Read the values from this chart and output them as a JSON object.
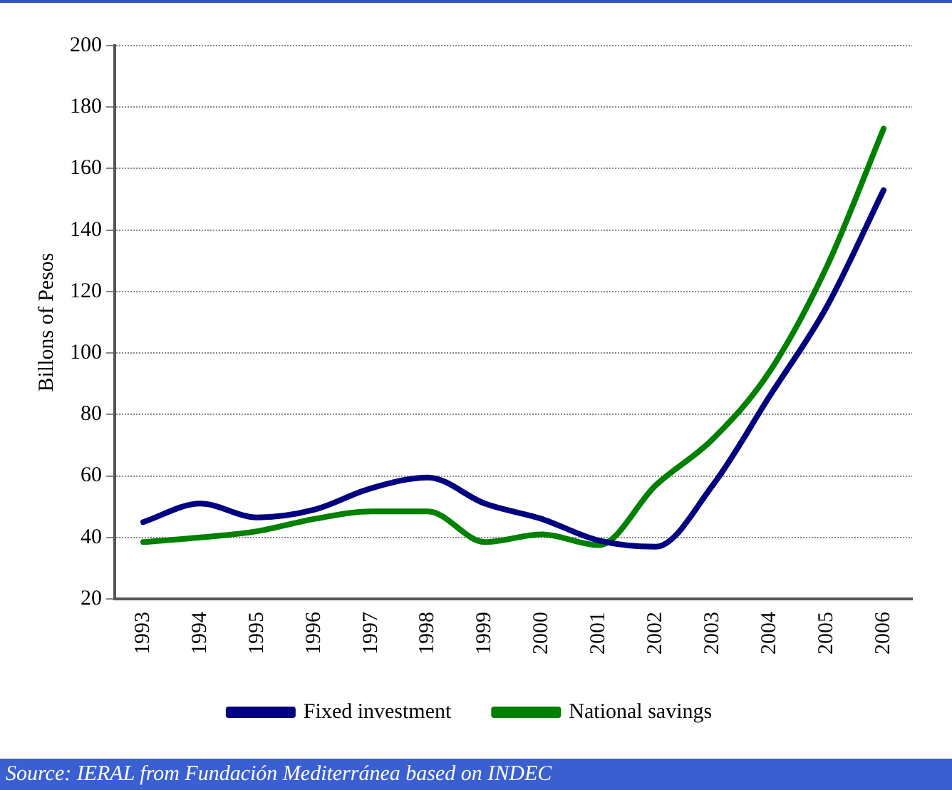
{
  "chart_data": {
    "type": "line",
    "ylabel": "Billons of Pesos",
    "categories": [
      "1993",
      "1994",
      "1995",
      "1996",
      "1997",
      "1998",
      "1999",
      "2000",
      "2001",
      "2002",
      "2003",
      "2004",
      "2005",
      "2006"
    ],
    "series": [
      {
        "name": "Fixed investment",
        "color": "#000080",
        "values": [
          45,
          51,
          46.5,
          49,
          56,
          59.5,
          51,
          46,
          39,
          37,
          57,
          86,
          115,
          153
        ]
      },
      {
        "name": "National savings",
        "color": "#008000",
        "values": [
          38.5,
          40,
          42,
          46,
          48.5,
          48.5,
          38.5,
          41,
          37.5,
          57,
          72,
          94,
          128,
          173
        ]
      }
    ],
    "ylim": [
      20,
      200
    ],
    "yticks": [
      20,
      40,
      60,
      80,
      100,
      120,
      140,
      160,
      180,
      200
    ],
    "grid": "y",
    "legend": "bottom",
    "marker": "none",
    "line_style": "solid",
    "annotations": [
      "Source: IERAL from Fundación Mediterránea based on INDEC"
    ]
  }
}
